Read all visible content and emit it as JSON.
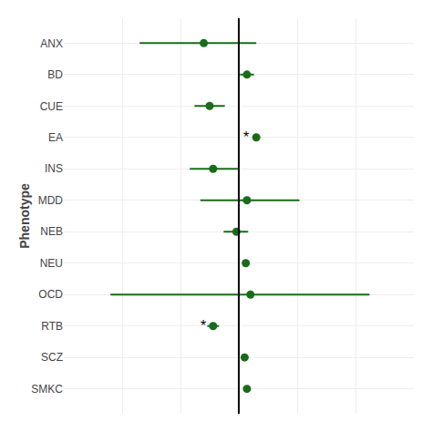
{
  "chart_data": {
    "type": "forest",
    "ylabel": "Phenotype",
    "categories": [
      "ANX",
      "BD",
      "CUE",
      "EA",
      "INS",
      "MDD",
      "NEB",
      "NEU",
      "OCD",
      "RTB",
      "SCZ",
      "SMKC"
    ],
    "values": [
      -0.3,
      0.07,
      -0.25,
      0.15,
      -0.22,
      0.07,
      -0.02,
      0.06,
      0.1,
      -0.22,
      0.05,
      0.07
    ],
    "ci_low": [
      -0.85,
      0.01,
      -0.38,
      0.15,
      -0.42,
      -0.33,
      -0.13,
      0.06,
      -1.1,
      -0.27,
      0.05,
      0.04
    ],
    "ci_high": [
      0.15,
      0.13,
      -0.12,
      0.15,
      0.0,
      0.52,
      0.08,
      0.06,
      1.12,
      -0.17,
      0.05,
      0.1
    ],
    "color": "#1a6b1a",
    "reference_x": 0.0,
    "annotations": [
      {
        "category": "EA",
        "text": "*"
      },
      {
        "category": "RTB",
        "text": "*"
      }
    ],
    "xlim": [
      -1.5,
      1.5
    ],
    "xticks": [
      -1.5,
      -1,
      -0.5,
      0,
      0.5,
      1,
      1.5
    ],
    "grid": true,
    "tick_labels": "y"
  }
}
